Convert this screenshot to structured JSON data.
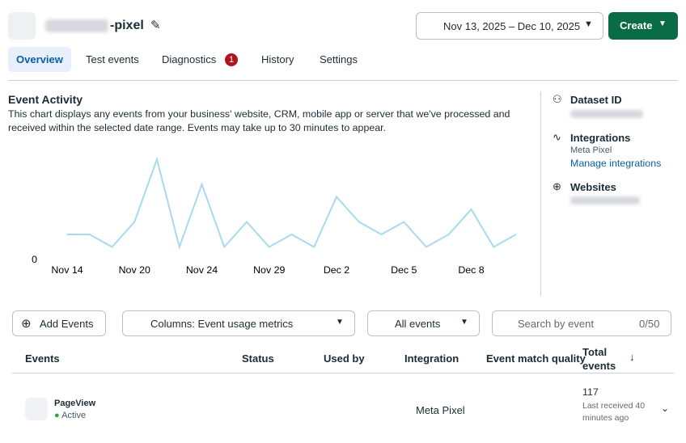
{
  "header": {
    "name_suffix": "-pixel",
    "date_range": "Nov 13, 2025 – Dec 10, 2025",
    "create": "Create"
  },
  "tabs": [
    "Overview",
    "Test events",
    "Diagnostics",
    "History",
    "Settings"
  ],
  "diagnostics_badge": "1",
  "activity": {
    "title": "Event Activity",
    "description": "This chart displays any events from your business' website, CRM, mobile app or server that we've processed and received within the selected date range. Events may take up to 30 minutes to appear."
  },
  "chart_data": {
    "type": "line",
    "categories": [
      "Nov 14",
      null,
      null,
      "Nov 20",
      null,
      null,
      "Nov 24",
      null,
      null,
      "Nov 29",
      null,
      null,
      "Dec 2",
      null,
      null,
      "Dec 5",
      null,
      null,
      "Dec 8",
      null,
      null
    ],
    "values": [
      2,
      2,
      1,
      3,
      8,
      1,
      6,
      1,
      3,
      1,
      2,
      1,
      5,
      3,
      2,
      3,
      1,
      2,
      4,
      1,
      2
    ],
    "color": "#a9d9ee",
    "ylim": [
      0,
      8.45
    ],
    "yticks": [
      0
    ]
  },
  "sidebar": {
    "dataset_id": "Dataset ID",
    "integrations": "Integrations",
    "integration_value": "Meta Pixel",
    "manage": "Manage integrations",
    "websites": "Websites"
  },
  "toolbar": {
    "add_events": "Add Events",
    "columns": "Columns: Event usage metrics",
    "filter": "All events",
    "search": "Search by event",
    "search_count": "0/50"
  },
  "table": {
    "columns": [
      "Events",
      "Status",
      "Used by",
      "Integration",
      "Event match quality",
      "Total events"
    ],
    "rows": [
      {
        "event": "PageView",
        "status": "Active",
        "integration": "Meta Pixel",
        "total": "117",
        "last_received": "Last received 40 minutes ago"
      }
    ]
  }
}
